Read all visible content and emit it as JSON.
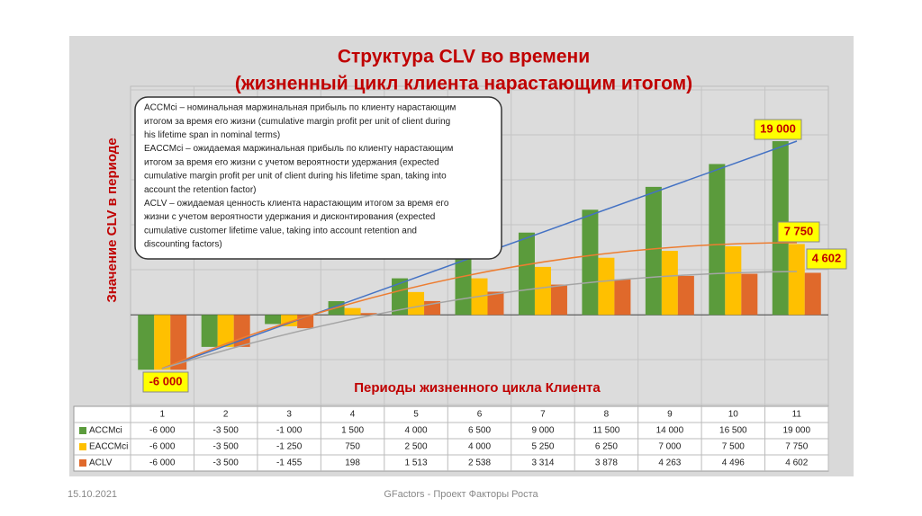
{
  "chart_data": {
    "type": "bar",
    "title": [
      "Структура CLV во времени",
      "(жизненный цикл клиента нарастающим итогом)"
    ],
    "y_label": "Значение  CLV в периоде",
    "x_label": "Периоды жизненного цикла Клиента",
    "categories": [
      "1",
      "2",
      "3",
      "4",
      "5",
      "6",
      "7",
      "8",
      "9",
      "10",
      "11"
    ],
    "series": [
      {
        "name": "ACCMci",
        "color": "#5b9b3c",
        "values": [
          -6000,
          -3500,
          -1000,
          1500,
          4000,
          6500,
          9000,
          11500,
          14000,
          16500,
          19000
        ],
        "value_labels": [
          "-6 000",
          "-3 500",
          "-1 000",
          "1 500",
          "4 000",
          "6 500",
          "9 000",
          "11 500",
          "14 000",
          "16 500",
          "19 000"
        ]
      },
      {
        "name": "EACCMci",
        "color": "#ffc000",
        "values": [
          -6000,
          -3500,
          -1250,
          750,
          2500,
          4000,
          5250,
          6250,
          7000,
          7500,
          7750
        ],
        "value_labels": [
          "-6 000",
          "-3 500",
          "-1 250",
          "750",
          "2 500",
          "4 000",
          "5 250",
          "6 250",
          "7 000",
          "7 500",
          "7 750"
        ]
      },
      {
        "name": "ACLV",
        "color": "#e0692b",
        "values": [
          -6000,
          -3500,
          -1455,
          198,
          1513,
          2538,
          3314,
          3878,
          4263,
          4496,
          4602
        ],
        "value_labels": [
          "-6 000",
          "-3 500",
          "-1 455",
          "198",
          "1 513",
          "2 538",
          "3 314",
          "3 878",
          "4 263",
          "4 496",
          "4 602"
        ]
      }
    ],
    "ylim": [
      -10000,
      25000
    ],
    "annotations": [
      {
        "text": "-6 000"
      },
      {
        "text": "19 000"
      },
      {
        "text": "7 750"
      },
      {
        "text": "4 602"
      }
    ],
    "note_lines": [
      "ACCMci – номинальная маржинальная прибыль по клиенту нарастающим",
      "итогом за время его жизни (cumulative margin profit per unit of client during",
      "his lifetime span in nominal terms)",
      "EACCMci – ожидаемая маржинальная прибыль по клиенту нарастающим",
      "итогом за время его жизни с учетом вероятности удержания (expected",
      "cumulative margin profit per unit of client during his lifetime span, taking into",
      "account the retention factor)",
      "ACLV – ожидаемая ценность клиента нарастающим итогом за время его",
      "жизни с учетом вероятности удержания и дисконтирования (expected",
      "cumulative customer lifetime value, taking into account retention and",
      "discounting factors)"
    ]
  },
  "footer": {
    "date": "15.10.2021",
    "text": "GFactors - Проект Факторы Роста"
  }
}
